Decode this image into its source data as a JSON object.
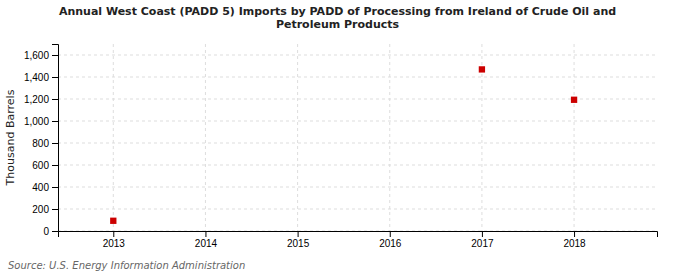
{
  "chart_data": {
    "type": "scatter",
    "title": "Annual West Coast (PADD 5) Imports by PADD of Processing from Ireland of Crude Oil and\nPetroleum Products",
    "ylabel": "Thousand Barrels",
    "x": [
      2013,
      2017,
      2018
    ],
    "values": [
      93,
      1469,
      1193
    ],
    "color": "#cc0000",
    "marker": "square",
    "xlim": [
      2012.4,
      2018.9
    ],
    "xticks": [
      2013,
      2014,
      2015,
      2016,
      2017,
      2018
    ],
    "ylim": [
      0,
      1700
    ],
    "yticks": [
      0,
      200,
      400,
      600,
      800,
      {
        "value": 1000,
        "label": "1,000"
      },
      {
        "value": 1200,
        "label": "1,200"
      },
      {
        "value": 1400,
        "label": "1,400"
      },
      {
        "value": 1600,
        "label": "1,600"
      }
    ],
    "grid": true,
    "source": "Source: U.S. Energy Information Administration"
  }
}
